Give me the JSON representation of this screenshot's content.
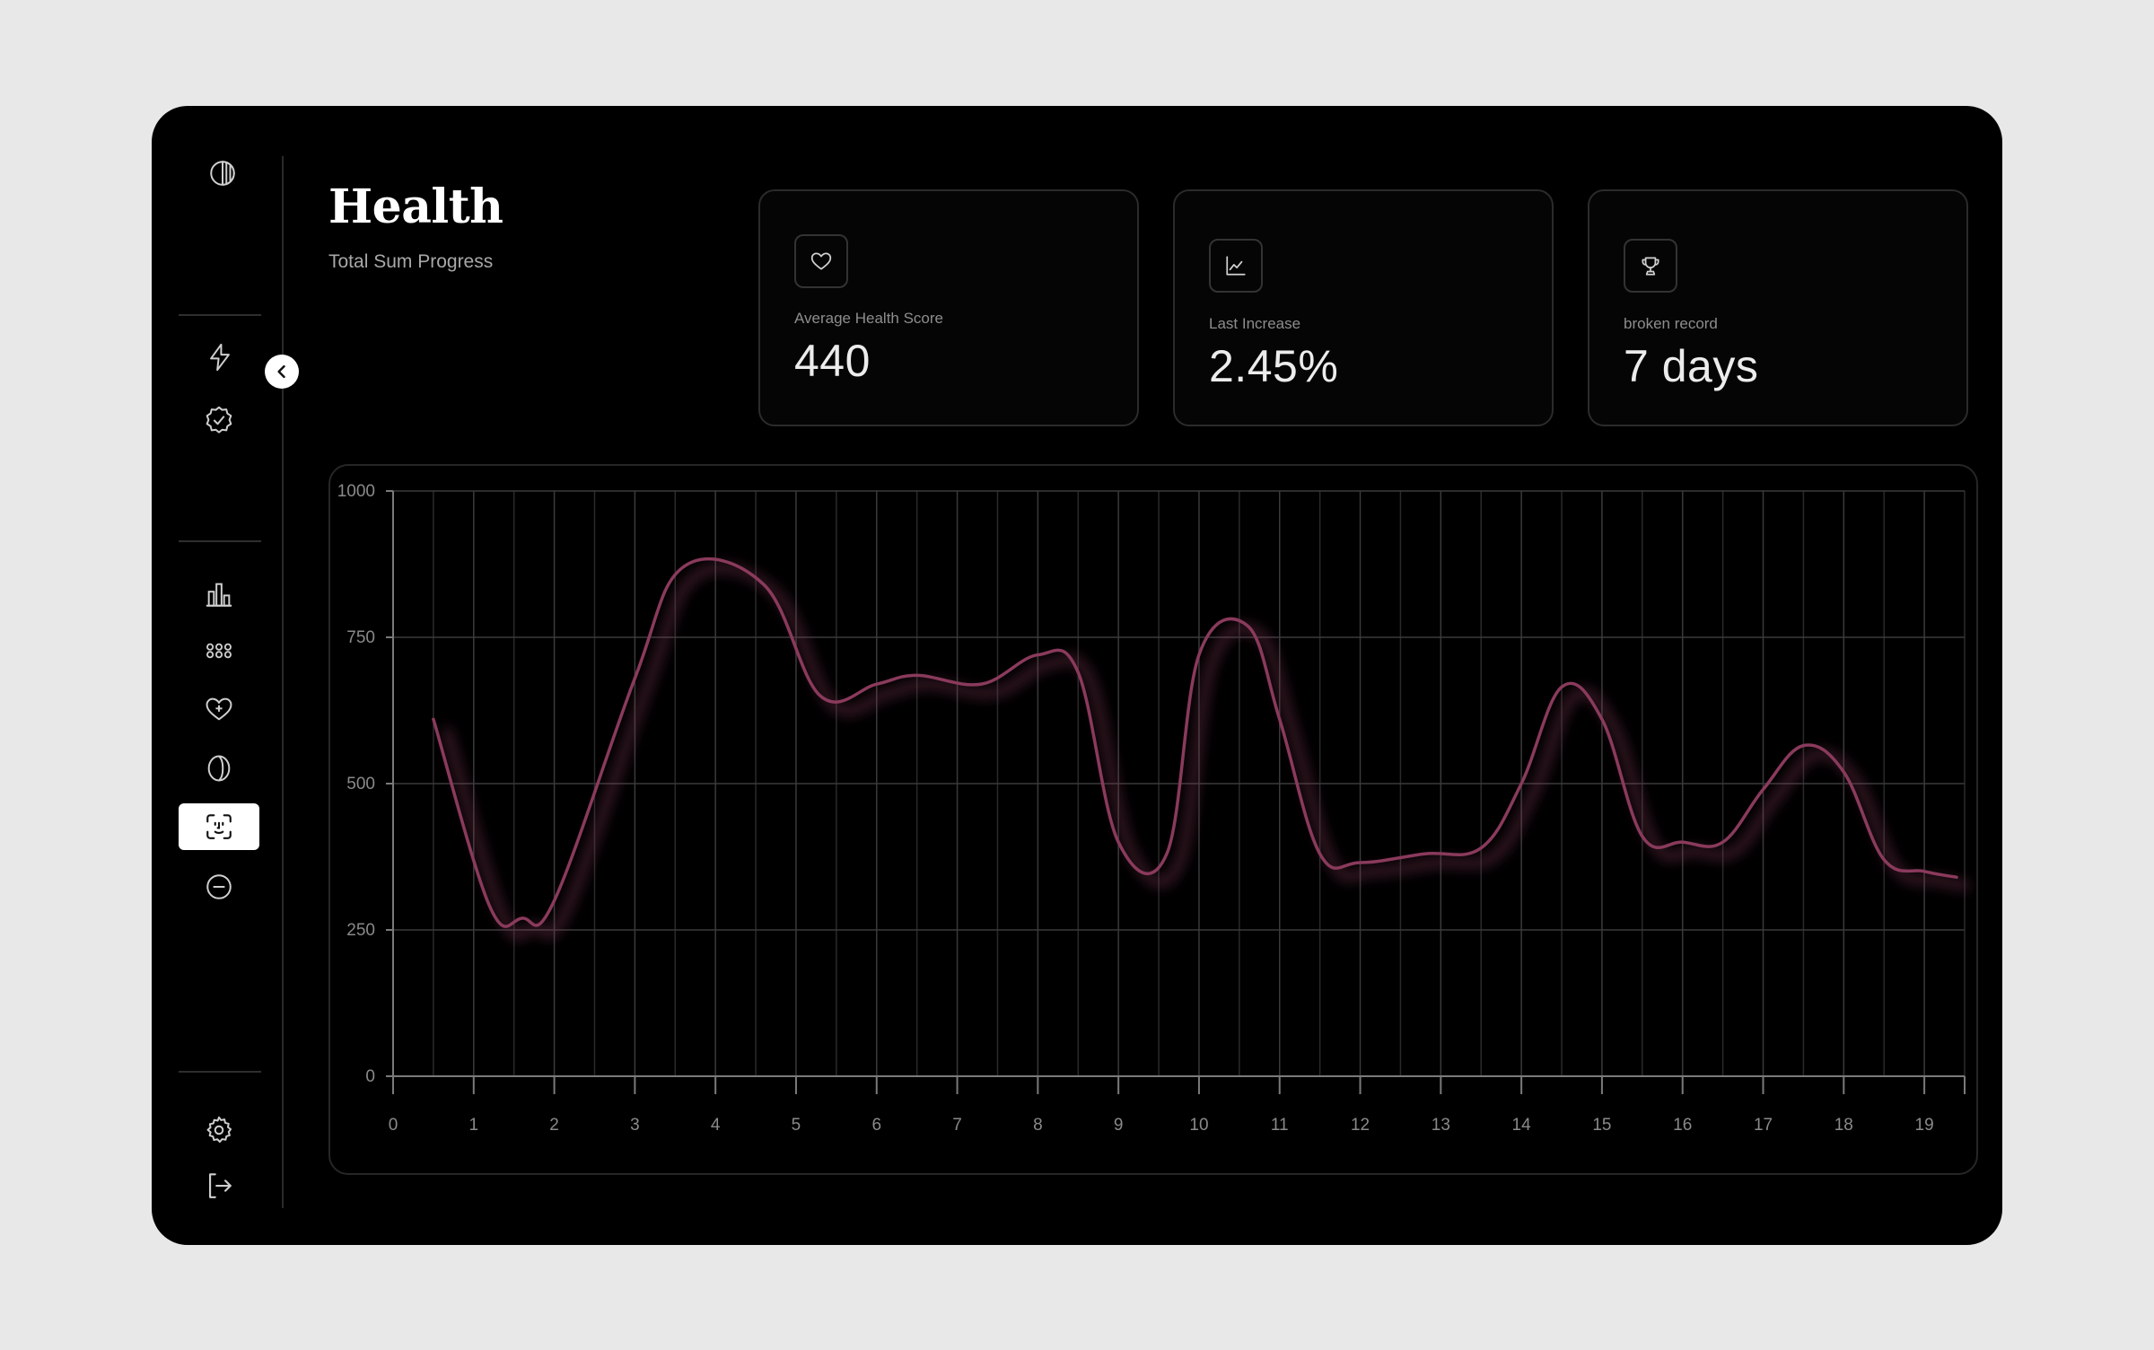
{
  "header": {
    "title": "Health",
    "subtitle": "Total Sum Progress"
  },
  "sidebar": {
    "top_icon": "contrast-icon",
    "groups": [
      [
        "lightning-icon",
        "badge-check-icon"
      ],
      [
        "bar-chart-icon",
        "grid-dots-icon",
        "heart-plus-icon",
        "leaf-circle-icon",
        "face-scan-icon",
        "minus-circle-icon"
      ],
      [
        "gear-icon",
        "logout-icon"
      ]
    ],
    "active_item": "face-scan-icon"
  },
  "cards": [
    {
      "icon": "heart-icon",
      "label": "Average Health Score",
      "value": "440"
    },
    {
      "icon": "line-chart-icon",
      "label": "Last Increase",
      "value": "2.45%"
    },
    {
      "icon": "trophy-icon",
      "label": "broken record",
      "value": "7 days"
    }
  ],
  "colors": {
    "background": "#000000",
    "accent": "#8a3a5c",
    "page": "#e8e8e9"
  },
  "chart_data": {
    "type": "line",
    "title": "",
    "xlabel": "",
    "ylabel": "",
    "xlim": [
      0,
      19.5
    ],
    "ylim": [
      0,
      1000
    ],
    "x_ticks": [
      0,
      1,
      2,
      3,
      4,
      5,
      6,
      7,
      8,
      9,
      10,
      11,
      12,
      13,
      14,
      15,
      16,
      17,
      18,
      19
    ],
    "y_ticks": [
      0,
      250,
      500,
      750,
      1000
    ],
    "grid": true,
    "series": [
      {
        "color": "#8a3a5c",
        "x": [
          0.5,
          1.2,
          1.6,
          2.0,
          3.0,
          3.6,
          4.6,
          5.3,
          6.0,
          6.5,
          7.3,
          8.0,
          8.5,
          9.0,
          9.6,
          10.0,
          10.6,
          11.0,
          11.5,
          12.0,
          12.8,
          13.5,
          14.0,
          14.5,
          15.0,
          15.5,
          16.0,
          16.5,
          17.0,
          17.5,
          18.0,
          18.5,
          19.0,
          19.4
        ],
        "y": [
          610,
          290,
          270,
          300,
          680,
          870,
          840,
          650,
          670,
          685,
          670,
          720,
          690,
          400,
          380,
          720,
          770,
          610,
          380,
          365,
          380,
          390,
          500,
          665,
          610,
          410,
          400,
          400,
          490,
          565,
          520,
          370,
          350,
          340
        ]
      }
    ]
  }
}
